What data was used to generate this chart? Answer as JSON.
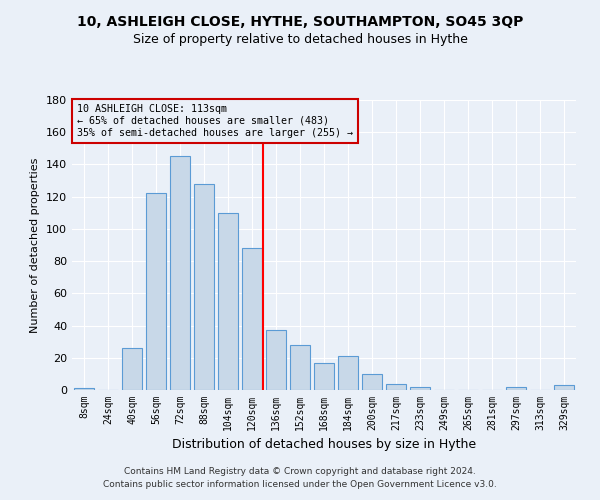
{
  "title": "10, ASHLEIGH CLOSE, HYTHE, SOUTHAMPTON, SO45 3QP",
  "subtitle": "Size of property relative to detached houses in Hythe",
  "xlabel": "Distribution of detached houses by size in Hythe",
  "ylabel": "Number of detached properties",
  "bar_labels": [
    "8sqm",
    "24sqm",
    "40sqm",
    "56sqm",
    "72sqm",
    "88sqm",
    "104sqm",
    "120sqm",
    "136sqm",
    "152sqm",
    "168sqm",
    "184sqm",
    "200sqm",
    "217sqm",
    "233sqm",
    "249sqm",
    "265sqm",
    "281sqm",
    "297sqm",
    "313sqm",
    "329sqm"
  ],
  "bar_values": [
    1,
    0,
    26,
    122,
    145,
    128,
    110,
    88,
    37,
    28,
    17,
    21,
    10,
    4,
    2,
    0,
    0,
    0,
    2,
    0,
    3
  ],
  "bar_color": "#c8d8e8",
  "bar_edge_color": "#5b9bd5",
  "vline_pos": 7.45,
  "annotation_line1": "10 ASHLEIGH CLOSE: 113sqm",
  "annotation_line2": "← 65% of detached houses are smaller (483)",
  "annotation_line3": "35% of semi-detached houses are larger (255) →",
  "box_color": "#cc0000",
  "ylim": [
    0,
    180
  ],
  "yticks": [
    0,
    20,
    40,
    60,
    80,
    100,
    120,
    140,
    160,
    180
  ],
  "footer1": "Contains HM Land Registry data © Crown copyright and database right 2024.",
  "footer2": "Contains public sector information licensed under the Open Government Licence v3.0.",
  "bg_color": "#eaf0f8",
  "grid_color": "#ffffff"
}
